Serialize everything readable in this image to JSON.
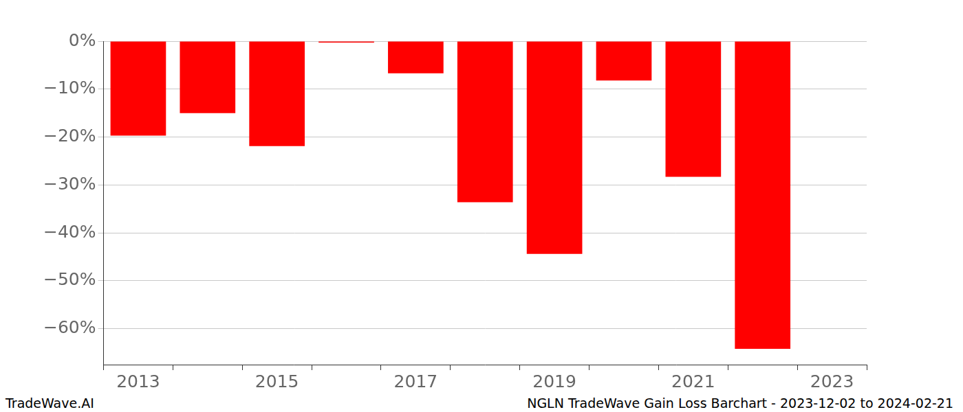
{
  "chart_data": {
    "type": "bar",
    "title": "NGLN TradeWave Gain Loss Barchart - 2023-12-02 to 2024-02-21",
    "annotations": [
      "TradeWave.AI"
    ],
    "categories": [
      "2013",
      null,
      "2015",
      null,
      "2017",
      null,
      "2019",
      null,
      "2021",
      null,
      "2023"
    ],
    "values": [
      -19.7,
      -15.0,
      -21.9,
      -0.3,
      -6.7,
      -33.6,
      -44.4,
      -8.2,
      -28.3,
      -64.2,
      null
    ],
    "color": "#ff0000",
    "ylim": [
      -67.5,
      0
    ],
    "yticks": [
      {
        "value": 0,
        "label": "0%"
      },
      {
        "value": -10,
        "label": "−10%"
      },
      {
        "value": -20,
        "label": "−20%"
      },
      {
        "value": -30,
        "label": "−30%"
      },
      {
        "value": -40,
        "label": "−40%"
      },
      {
        "value": -50,
        "label": "−50%"
      },
      {
        "value": -60,
        "label": "−60%"
      }
    ],
    "grid": true
  }
}
